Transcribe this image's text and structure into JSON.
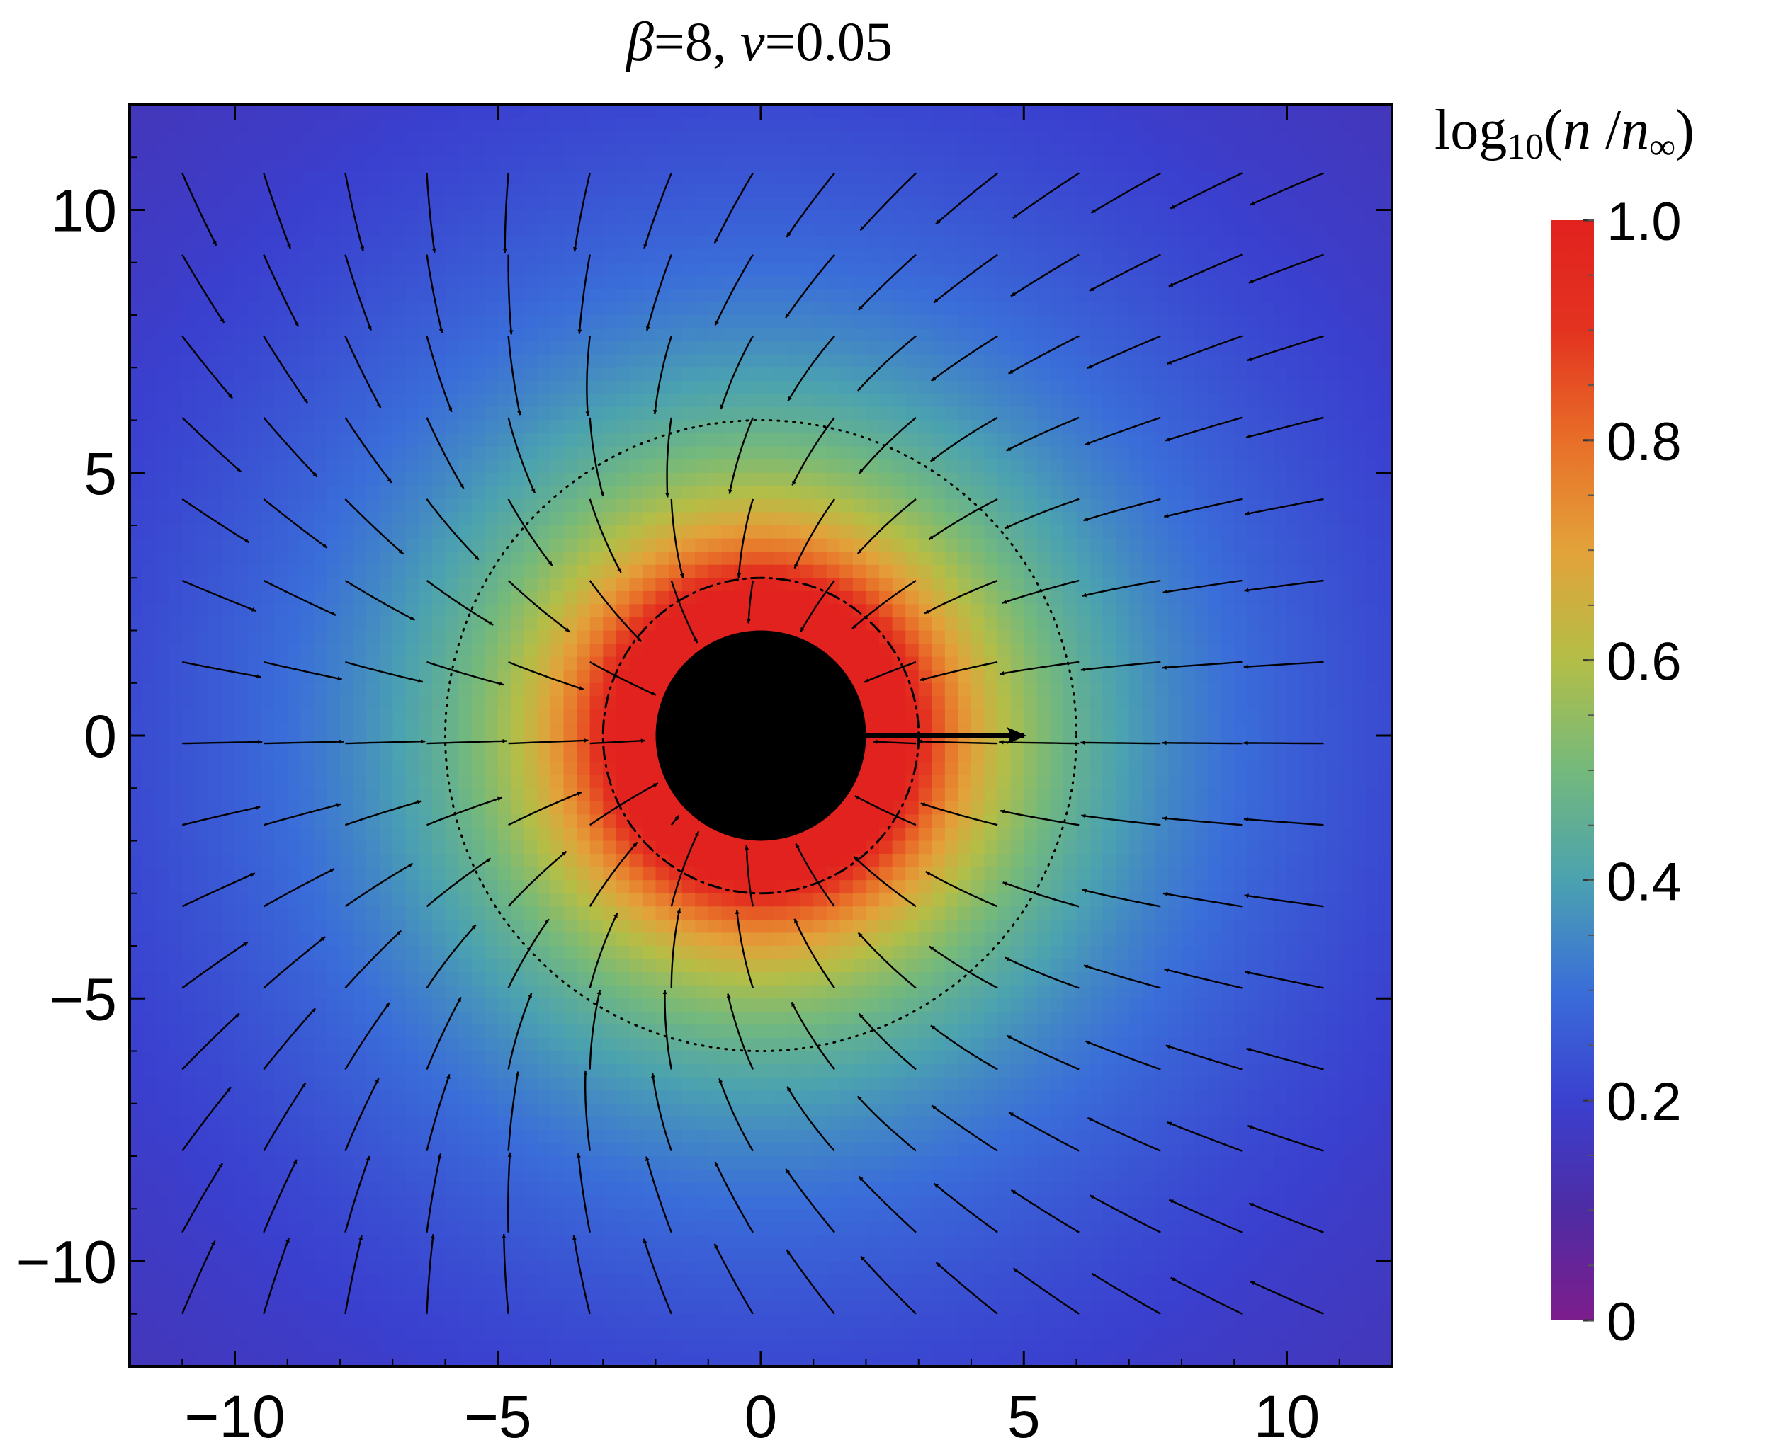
{
  "chart_data": {
    "type": "heatmap",
    "title": {
      "beta_symbol": "β",
      "beta_value": "=8, ",
      "v_symbol": "v",
      "v_value": "=0.05"
    },
    "xlabel": "",
    "ylabel": "",
    "xlim": [
      -12,
      12
    ],
    "ylim": [
      -12,
      12
    ],
    "x_ticks": [
      {
        "value": -10,
        "label": "−10"
      },
      {
        "value": -5,
        "label": "−5"
      },
      {
        "value": 0,
        "label": "0"
      },
      {
        "value": 5,
        "label": "5"
      },
      {
        "value": 10,
        "label": "10"
      }
    ],
    "y_ticks": [
      {
        "value": 10,
        "label": "10"
      },
      {
        "value": 5,
        "label": "5"
      },
      {
        "value": 0,
        "label": "0"
      },
      {
        "value": -5,
        "label": "−5"
      },
      {
        "value": -10,
        "label": "−10"
      }
    ],
    "colorbar": {
      "label": {
        "prefix": "log",
        "subscript": "10",
        "open": "(",
        "numerator": "n",
        "slash": " /",
        "denominator": "n",
        "denominator_subscript": "∞",
        "close": ")"
      },
      "range": [
        0,
        1
      ],
      "ticks": [
        {
          "value": 1.0,
          "label": "1.0"
        },
        {
          "value": 0.8,
          "label": "0.8"
        },
        {
          "value": 0.6,
          "label": "0.6"
        },
        {
          "value": 0.4,
          "label": "0.4"
        },
        {
          "value": 0.2,
          "label": "0.2"
        },
        {
          "value": 0.0,
          "label": "0"
        }
      ],
      "colors": [
        "#7d1d8c",
        "#4e2ca4",
        "#3a40cf",
        "#3a6ed9",
        "#4ba2b0",
        "#74b97c",
        "#b3be47",
        "#e3a23a",
        "#e86e28",
        "#e33320",
        "#e2221f"
      ]
    },
    "central_disk": {
      "radius": 2,
      "color": "#000000"
    },
    "circles": [
      {
        "radius": 3,
        "style": "dash-dot"
      },
      {
        "radius": 6,
        "style": "dotted"
      }
    ],
    "velocity_arrow": {
      "from": [
        2,
        0
      ],
      "to": [
        5,
        0
      ]
    },
    "grid": false,
    "legend": "none"
  }
}
